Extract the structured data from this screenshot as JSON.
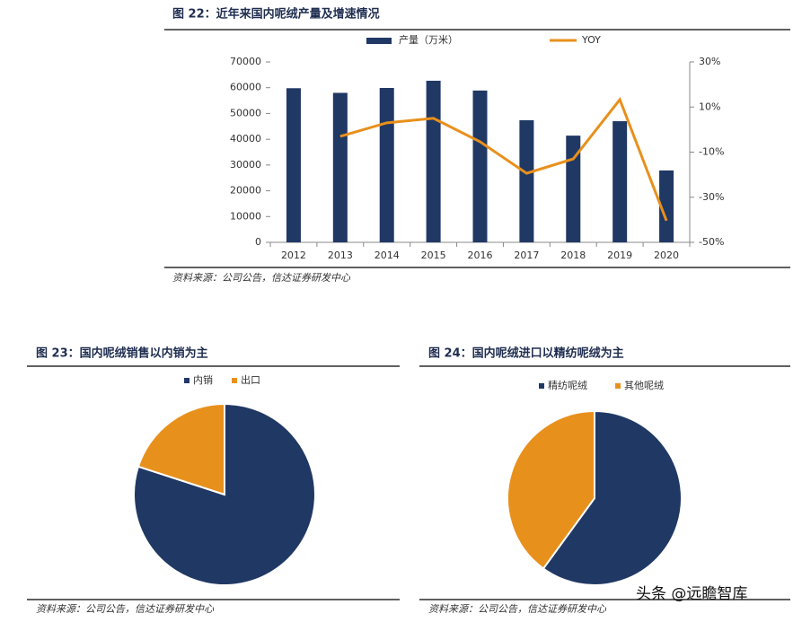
{
  "chart_data": [
    {
      "type": "combo",
      "title": "图 22：近年来国内呢绒产量及增速情况",
      "source": "资料来源：公司公告，信达证券研发中心",
      "categories": [
        "2012",
        "2013",
        "2014",
        "2015",
        "2016",
        "2017",
        "2018",
        "2019",
        "2020"
      ],
      "series": [
        {
          "name": "产量（万米）",
          "type": "bar",
          "color": "#203864",
          "values": [
            59800,
            58000,
            59900,
            62700,
            58900,
            47400,
            41400,
            47000,
            27900
          ]
        },
        {
          "name": "YOY",
          "type": "line",
          "axis": "y2",
          "color": "#e8901c",
          "values": [
            null,
            -3,
            3,
            5,
            -5.4,
            -19.4,
            -13,
            13.3,
            -40.4
          ]
        }
      ],
      "ylim": [
        0,
        70000
      ],
      "yticks": [
        0,
        10000,
        20000,
        30000,
        40000,
        50000,
        60000,
        70000
      ],
      "y2lim": [
        -50,
        30
      ],
      "y2ticks": [
        {
          "value": -50,
          "label": "-50%"
        },
        {
          "value": -30,
          "label": "-30%"
        },
        {
          "value": -10,
          "label": "-10%"
        },
        {
          "value": 10,
          "label": "10%"
        },
        {
          "value": 30,
          "label": "30%"
        }
      ]
    },
    {
      "type": "pie",
      "title": "图 23：国内呢绒销售以内销为主",
      "source": "资料来源：公司公告，信达证券研发中心",
      "categories": [
        "内销",
        "出口"
      ],
      "values": [
        80,
        20
      ],
      "colors": [
        "#203864",
        "#e8901c"
      ]
    },
    {
      "type": "pie",
      "title": "图 24：国内呢绒进口以精纺呢绒为主",
      "source": "资料来源：公司公告，信达证券研发中心",
      "categories": [
        "精纺呢绒",
        "其他呢绒"
      ],
      "values": [
        60,
        40
      ],
      "colors": [
        "#203864",
        "#e8901c"
      ]
    }
  ],
  "watermark": "头条 @远瞻智库"
}
